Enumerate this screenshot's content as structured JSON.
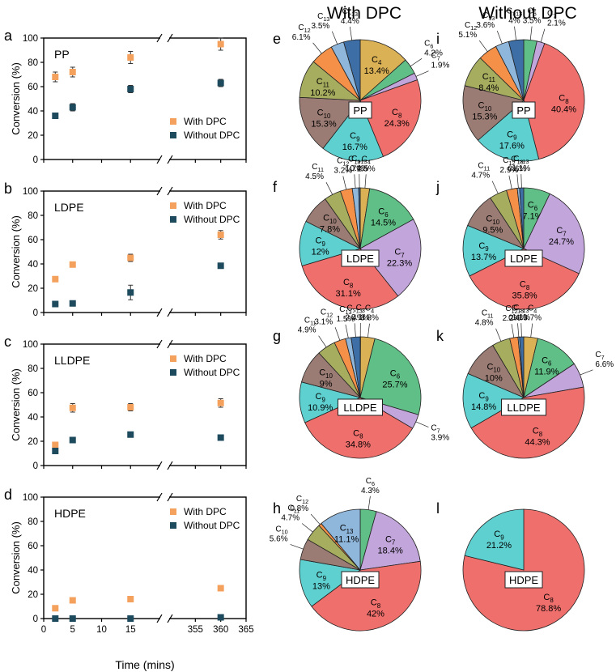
{
  "col_headers": {
    "with": "With DPC",
    "without": "Without DPC"
  },
  "colors": {
    "with": "#f5a15e",
    "without": "#1e4a5e",
    "slices": {
      "C3": "#f4a1b8",
      "C4": "#dbb155",
      "C6": "#5fbf86",
      "C7": "#c2a5db",
      "C8": "#ef6f6c",
      "C9": "#5fd0d0",
      "C10": "#9b7c74",
      "C11": "#a7ad5f",
      "C12": "#f49048",
      "C13": "#8fb6db",
      "C>13": "#3d6ea5"
    }
  },
  "shared_axes": {
    "ylabel": "Conversion (%)",
    "xlabel": "Time (mins)",
    "ylim": [
      0,
      100
    ],
    "yticks": [
      0,
      20,
      40,
      60,
      80,
      100
    ],
    "xticks": [
      "0",
      "5",
      "10",
      "15",
      "355",
      "360",
      "365"
    ],
    "x_break": "between 15 and 355 mins"
  },
  "chart_data": [
    {
      "id": "a",
      "panel_label": "a",
      "type": "scatter",
      "title": "PP",
      "legend": [
        "With DPC",
        "Without DPC"
      ],
      "legend_position": "bottom-right",
      "x": [
        2,
        5,
        15,
        360
      ],
      "series": [
        {
          "name": "With DPC",
          "values": [
            68,
            72,
            84,
            95
          ],
          "errors": [
            4,
            4,
            5,
            5
          ]
        },
        {
          "name": "Without DPC",
          "values": [
            36,
            43,
            58,
            63
          ],
          "errors": [
            2,
            3,
            3,
            3
          ]
        }
      ]
    },
    {
      "id": "b",
      "panel_label": "b",
      "type": "scatter",
      "title": "LDPE",
      "legend": [
        "With DPC",
        "Without DPC"
      ],
      "legend_position": "top-right",
      "x": [
        2,
        5,
        15,
        360
      ],
      "series": [
        {
          "name": "With DPC",
          "values": [
            27.5,
            39.5,
            45,
            64
          ],
          "errors": [
            2,
            2,
            3,
            3.5
          ]
        },
        {
          "name": "Without DPC",
          "values": [
            7,
            7.5,
            16.5,
            38.5
          ],
          "errors": [
            1,
            1,
            6,
            2
          ]
        }
      ]
    },
    {
      "id": "c",
      "panel_label": "c",
      "type": "scatter",
      "title": "LLDPE",
      "legend": [
        "With DPC",
        "Without DPC"
      ],
      "legend_position": "top-right",
      "x": [
        2,
        5,
        15,
        360
      ],
      "series": [
        {
          "name": "With DPC",
          "values": [
            17,
            47.5,
            48,
            51.5
          ],
          "errors": [
            1.5,
            3.5,
            3,
            3.5
          ]
        },
        {
          "name": "Without DPC",
          "values": [
            12,
            21,
            25.5,
            23
          ],
          "errors": [
            1,
            1,
            1.5,
            1
          ]
        }
      ]
    },
    {
      "id": "d",
      "panel_label": "d",
      "type": "scatter",
      "title": "HDPE",
      "legend": [
        "With DPC",
        "Without DPC"
      ],
      "legend_position": "top-right",
      "x": [
        2,
        5,
        15,
        360
      ],
      "series": [
        {
          "name": "With DPC",
          "values": [
            8.5,
            15,
            16,
            25
          ],
          "errors": [
            1.5,
            1,
            1,
            1
          ]
        },
        {
          "name": "Without DPC",
          "values": [
            0,
            0,
            0,
            1
          ],
          "errors": [
            0,
            0,
            0,
            0
          ]
        }
      ]
    },
    {
      "id": "e",
      "panel_label": "e",
      "type": "pie",
      "center_label": "PP",
      "slices": [
        {
          "name": "C4",
          "value": 13.4
        },
        {
          "name": "C6",
          "value": 4.2
        },
        {
          "name": "C7",
          "value": 1.9
        },
        {
          "name": "C8",
          "value": 24.3
        },
        {
          "name": "C9",
          "value": 16.7
        },
        {
          "name": "C10",
          "value": 15.3
        },
        {
          "name": "C11",
          "value": 10.2
        },
        {
          "name": "C12",
          "value": 6.1
        },
        {
          "name": "C13",
          "value": 3.5
        },
        {
          "name": "C>13",
          "value": 4.4
        }
      ]
    },
    {
      "id": "f",
      "panel_label": "f",
      "type": "pie",
      "center_label": "LDPE",
      "slices": [
        {
          "name": "C4",
          "value": 2.5
        },
        {
          "name": "C6",
          "value": 14.5
        },
        {
          "name": "C7",
          "value": 22.3
        },
        {
          "name": "C8",
          "value": 31.1
        },
        {
          "name": "C9",
          "value": 12
        },
        {
          "name": "C10",
          "value": 7.8
        },
        {
          "name": "C11",
          "value": 4.5
        },
        {
          "name": "C12",
          "value": 3.2
        },
        {
          "name": "C13",
          "value": 1.7
        },
        {
          "name": "C>13",
          "value": 0.4
        }
      ]
    },
    {
      "id": "g",
      "panel_label": "g",
      "type": "pie",
      "center_label": "LLDPE",
      "slices": [
        {
          "name": "C3",
          "value": 0.1
        },
        {
          "name": "C4",
          "value": 3.8
        },
        {
          "name": "C6",
          "value": 25.7
        },
        {
          "name": "C7",
          "value": 3.9
        },
        {
          "name": "C8",
          "value": 34.8
        },
        {
          "name": "C9",
          "value": 10.9
        },
        {
          "name": "C10",
          "value": 9
        },
        {
          "name": "C11",
          "value": 4.9
        },
        {
          "name": "C12",
          "value": 3.1
        },
        {
          "name": "C13",
          "value": 1.5
        },
        {
          "name": "C>13",
          "value": 2.4
        }
      ]
    },
    {
      "id": "h",
      "panel_label": "h",
      "type": "pie",
      "center_label": "HDPE",
      "slices": [
        {
          "name": "C6",
          "value": 4.3
        },
        {
          "name": "C7",
          "value": 18.4
        },
        {
          "name": "C8",
          "value": 42
        },
        {
          "name": "C9",
          "value": 13
        },
        {
          "name": "C10",
          "value": 5.6
        },
        {
          "name": "C11",
          "value": 4.7
        },
        {
          "name": "C12",
          "value": 0.8
        },
        {
          "name": "C13",
          "value": 11.1
        }
      ]
    },
    {
      "id": "i",
      "panel_label": "i",
      "type": "pie",
      "center_label": "PP",
      "slices": [
        {
          "name": "C6",
          "value": 3.5
        },
        {
          "name": "C7",
          "value": 2.1
        },
        {
          "name": "C8",
          "value": 40.4
        },
        {
          "name": "C9",
          "value": 17.6
        },
        {
          "name": "C10",
          "value": 15.3
        },
        {
          "name": "C11",
          "value": 8.4
        },
        {
          "name": "C12",
          "value": 5.1
        },
        {
          "name": "C13",
          "value": 3.6
        },
        {
          "name": "C>13",
          "value": 4
        }
      ]
    },
    {
      "id": "j",
      "panel_label": "j",
      "type": "pie",
      "center_label": "LDPE",
      "slices": [
        {
          "name": "C6",
          "value": 7.1
        },
        {
          "name": "C7",
          "value": 24.7
        },
        {
          "name": "C8",
          "value": 35.8
        },
        {
          "name": "C9",
          "value": 13.7
        },
        {
          "name": "C10",
          "value": 9.5
        },
        {
          "name": "C11",
          "value": 4.7
        },
        {
          "name": "C12",
          "value": 2.9
        },
        {
          "name": "C13",
          "value": 0.6
        },
        {
          "name": "C>13",
          "value": 1.1
        }
      ]
    },
    {
      "id": "k",
      "panel_label": "k",
      "type": "pie",
      "center_label": "LLDPE",
      "slices": [
        {
          "name": "C4",
          "value": 3.7
        },
        {
          "name": "C6",
          "value": 11.9
        },
        {
          "name": "C7",
          "value": 6.6
        },
        {
          "name": "C8",
          "value": 44.3
        },
        {
          "name": "C9",
          "value": 14.8
        },
        {
          "name": "C10",
          "value": 10
        },
        {
          "name": "C11",
          "value": 4.8
        },
        {
          "name": "C12",
          "value": 2.2
        },
        {
          "name": "C13",
          "value": 0.4
        },
        {
          "name": "C>13",
          "value": 1.1
        }
      ]
    },
    {
      "id": "l",
      "panel_label": "l",
      "type": "pie",
      "center_label": "HDPE",
      "slices": [
        {
          "name": "C8",
          "value": 78.8
        },
        {
          "name": "C9",
          "value": 21.2
        }
      ]
    }
  ]
}
